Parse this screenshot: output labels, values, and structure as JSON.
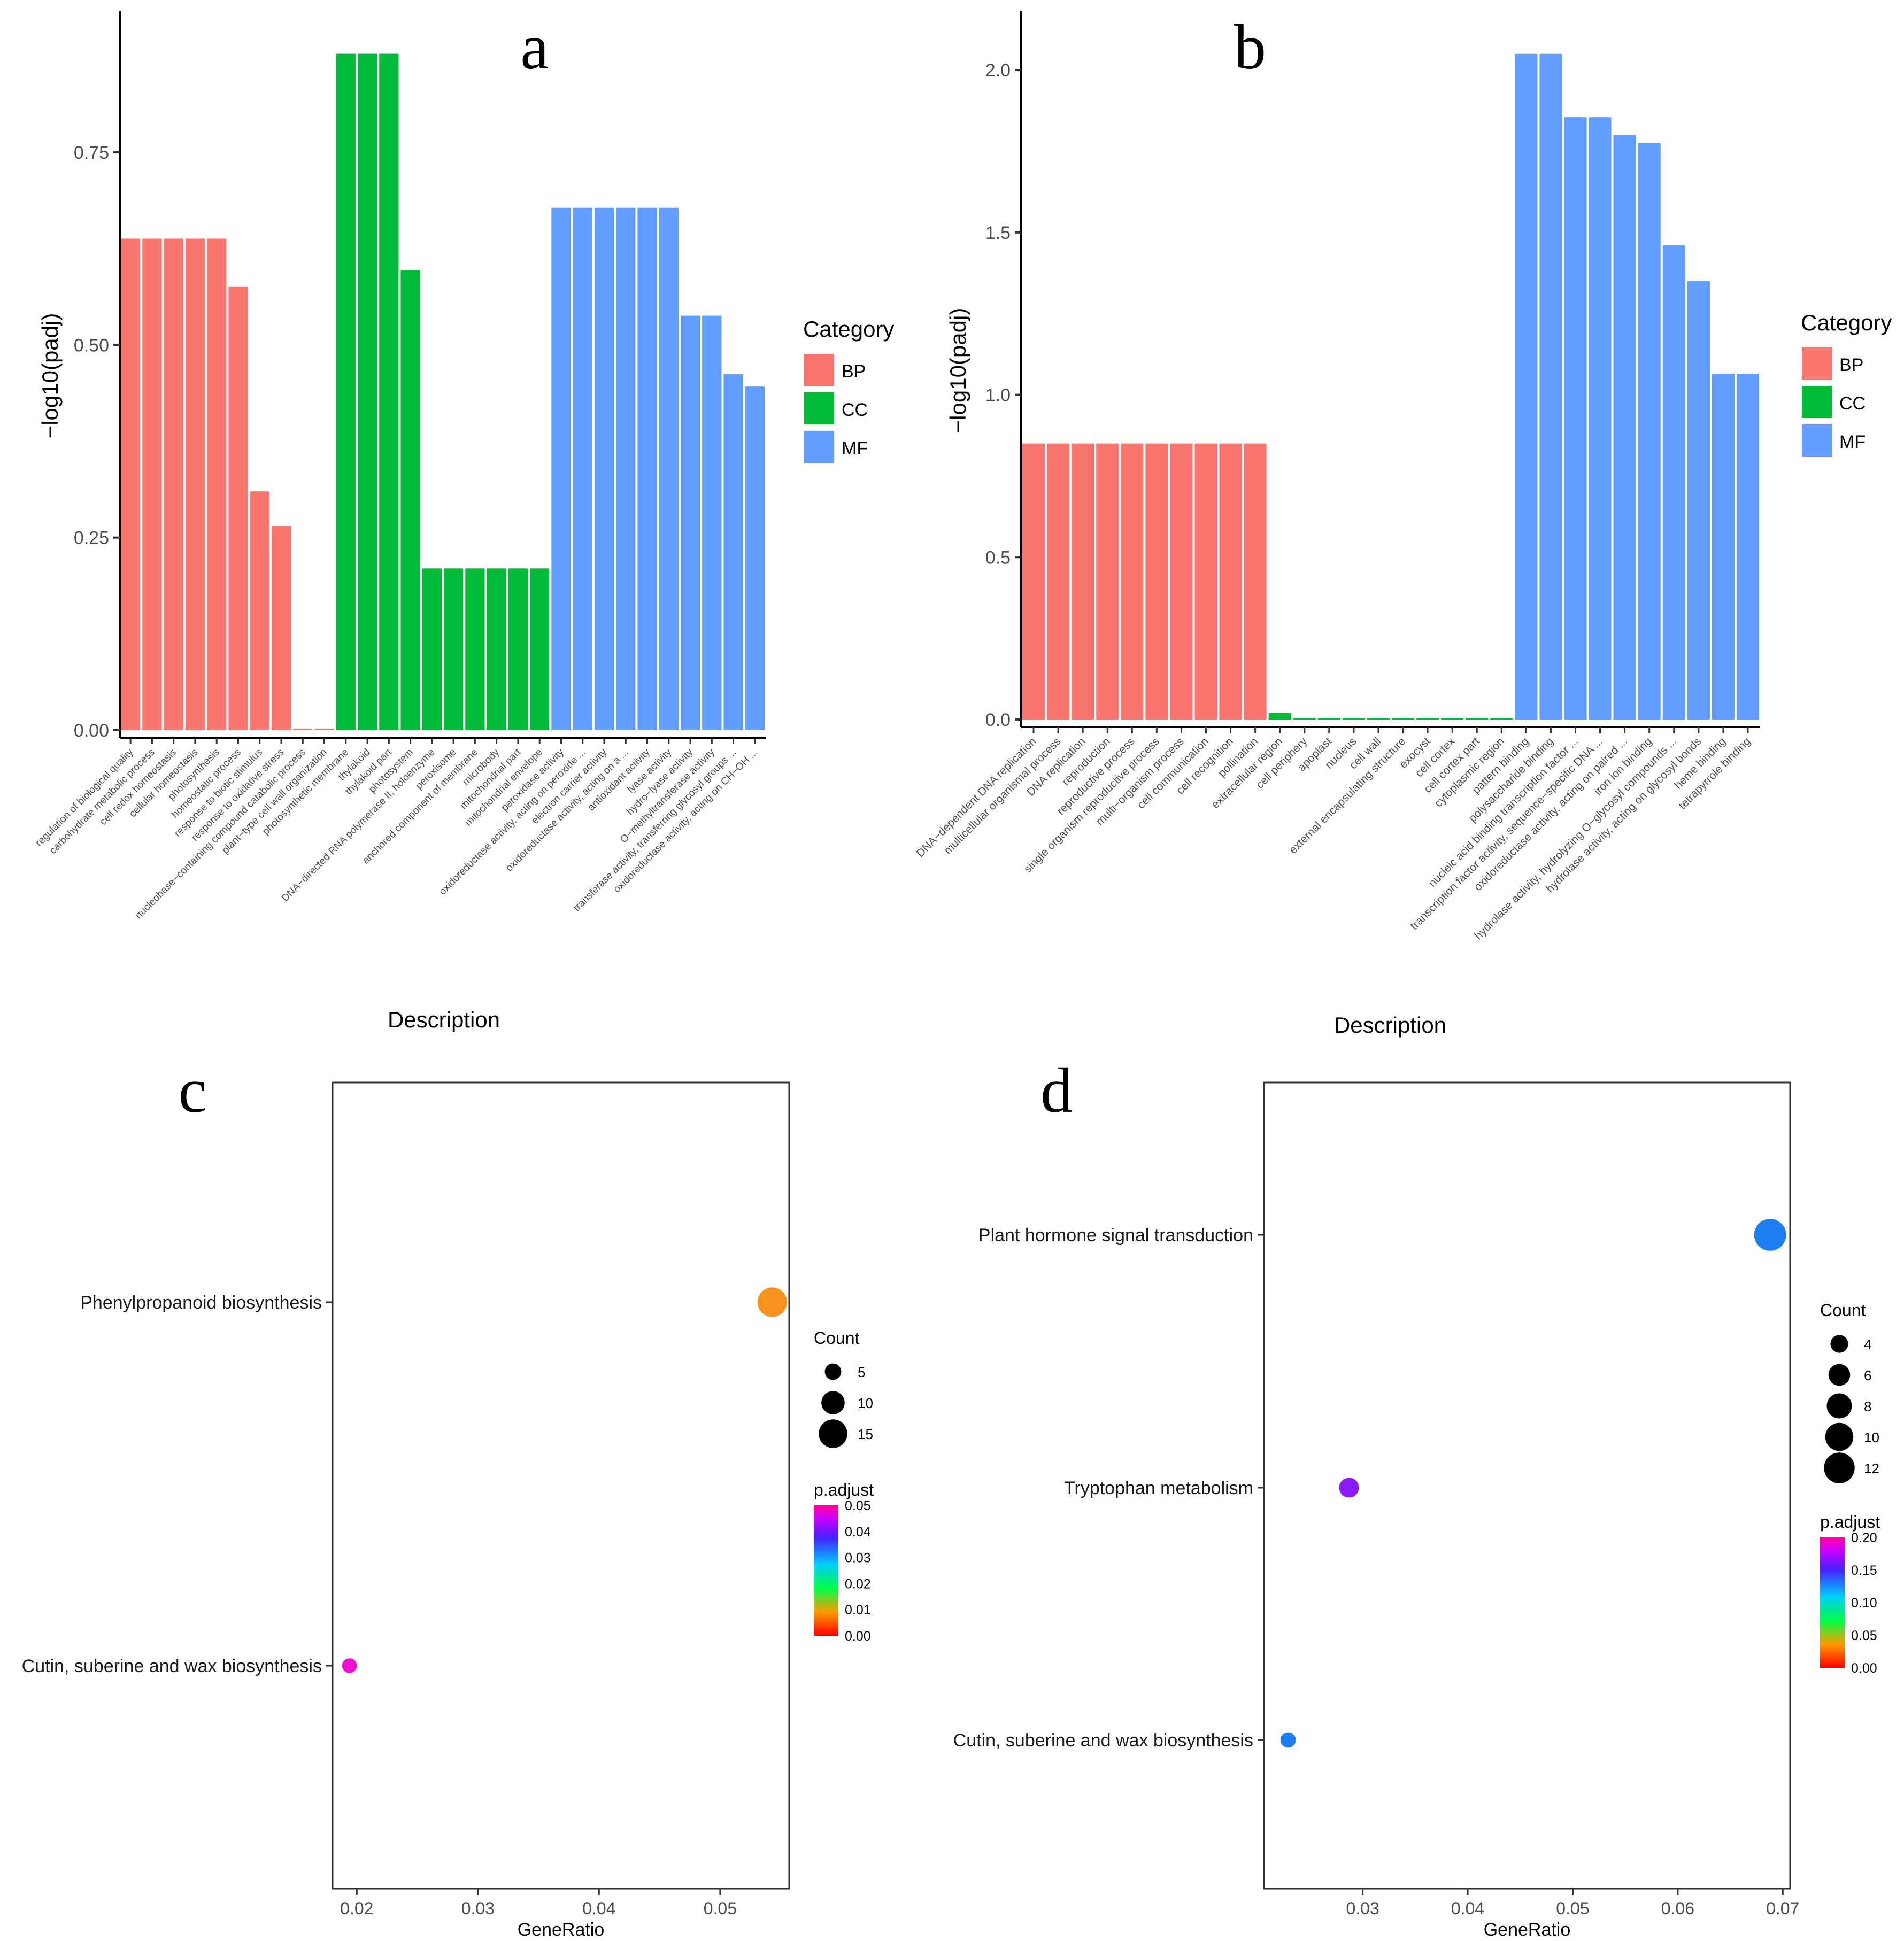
{
  "colors": {
    "BP": "#F8766D",
    "CC": "#00BA38",
    "MF": "#619CFF"
  },
  "chart_data": [
    {
      "panel": "a",
      "type": "bar",
      "xlabel": "Description",
      "ylabel": "−log10(padj)",
      "ylim": [
        0,
        0.92
      ],
      "yticks": [
        "0.00",
        "0.25",
        "0.50",
        "0.75"
      ],
      "legend_title": "Category",
      "legend": [
        "BP",
        "CC",
        "MF"
      ],
      "categories": [
        "regulation of biological quality",
        "carbohydrate metabolic process",
        "cell redox homeostasis",
        "cellular homeostasis",
        "photosynthesis",
        "homeostatic process",
        "response to biotic stimulus",
        "response to oxidative stress",
        "nucleobase−containing compound catabolic process",
        "plant−type cell wall organization",
        "photosynthetic membrane",
        "thylakoid",
        "thylakoid part",
        "photosystem",
        "DNA−directed RNA polymerase II, holoenzyme",
        "peroxisome",
        "anchored component of membrane",
        "microbody",
        "mitochondrial part",
        "mitochondrial envelope",
        "peroxidase activity",
        "oxidoreductase activity, acting on peroxide ...",
        "electron carrier activity",
        "oxidoreductase activity, acting on a ...",
        "antioxidant activity",
        "lyase activity",
        "hydro−lyase activity",
        "O−methyltransferase activity",
        "transferase activity, transferring glycosyl groups ...",
        "oxidoreductase activity, acting on CH−OH ..."
      ],
      "groups": [
        "BP",
        "BP",
        "BP",
        "BP",
        "BP",
        "BP",
        "BP",
        "BP",
        "BP",
        "BP",
        "CC",
        "CC",
        "CC",
        "CC",
        "CC",
        "CC",
        "CC",
        "CC",
        "CC",
        "CC",
        "MF",
        "MF",
        "MF",
        "MF",
        "MF",
        "MF",
        "MF",
        "MF",
        "MF",
        "MF"
      ],
      "values": [
        0.638,
        0.638,
        0.638,
        0.638,
        0.638,
        0.576,
        0.31,
        0.265,
        0.002,
        0.002,
        0.878,
        0.878,
        0.878,
        0.597,
        0.21,
        0.21,
        0.21,
        0.21,
        0.21,
        0.21,
        0.678,
        0.678,
        0.678,
        0.678,
        0.678,
        0.678,
        0.538,
        0.538,
        0.462,
        0.446
      ]
    },
    {
      "panel": "b",
      "type": "bar",
      "xlabel": "Description",
      "ylabel": "−log10(padj)",
      "ylim": [
        0,
        2.15
      ],
      "yticks": [
        "0.0",
        "0.5",
        "1.0",
        "1.5",
        "2.0"
      ],
      "legend_title": "Category",
      "legend": [
        "BP",
        "CC",
        "MF"
      ],
      "categories": [
        "DNA−dependent DNA replication",
        "multicellular organismal process",
        "DNA replication",
        "reproduction",
        "reproductive process",
        "single organism reproductive process",
        "multi−organism process",
        "cell communication",
        "cell recognition",
        "pollination",
        "extracellular region",
        "cell periphery",
        "apoplast",
        "nucleus",
        "cell wall",
        "external encapsulating structure",
        "exocyst",
        "cell cortex",
        "cell cortex part",
        "cytoplasmic region",
        "pattern binding",
        "polysaccharide binding",
        "nucleic acid binding transcription factor ...",
        "transcription factor activity, sequence−specific DNA ...",
        "oxidoreductase activity, acting on paired ...",
        "iron ion binding",
        "hydrolase activity, hydrolyzing O−glycosyl compounds ...",
        "hydrolase activity, acting on glycosyl bonds",
        "heme binding",
        "tetrapyrrole binding"
      ],
      "groups": [
        "BP",
        "BP",
        "BP",
        "BP",
        "BP",
        "BP",
        "BP",
        "BP",
        "BP",
        "BP",
        "CC",
        "CC",
        "CC",
        "CC",
        "CC",
        "CC",
        "CC",
        "CC",
        "CC",
        "CC",
        "MF",
        "MF",
        "MF",
        "MF",
        "MF",
        "MF",
        "MF",
        "MF",
        "MF",
        "MF"
      ],
      "values": [
        0.85,
        0.85,
        0.85,
        0.85,
        0.85,
        0.85,
        0.85,
        0.85,
        0.85,
        0.85,
        0.02,
        0.004,
        0.004,
        0.004,
        0.004,
        0.004,
        0.004,
        0.004,
        0.004,
        0.004,
        2.05,
        2.05,
        1.855,
        1.855,
        1.8,
        1.775,
        1.46,
        1.35,
        1.065,
        1.065
      ]
    },
    {
      "panel": "c",
      "type": "scatter",
      "xlabel": "GeneRatio",
      "xlim": [
        0.018,
        0.0557
      ],
      "xticks": [
        0.02,
        0.03,
        0.04,
        0.05
      ],
      "xtick_labels": [
        "0.02",
        "0.03",
        "0.04",
        "0.05"
      ],
      "categories": [
        "Phenylpropanoid biosynthesis",
        "Cutin, suberine and wax biosynthesis"
      ],
      "points": [
        {
          "term": "Phenylpropanoid biosynthesis",
          "x": 0.0543,
          "count": 16,
          "p_adjust": 0.0065,
          "color": "#F7931E"
        },
        {
          "term": "Cutin, suberine and wax biosynthesis",
          "x": 0.0194,
          "count": 4,
          "p_adjust": 0.0478,
          "color": "#EE12D0"
        }
      ],
      "size_legend": {
        "title": "Count",
        "labels": [
          "5",
          "10",
          "15"
        ],
        "values": [
          5,
          10,
          15
        ]
      },
      "color_legend": {
        "title": "p.adjust",
        "labels": [
          "0.05",
          "0.04",
          "0.03",
          "0.02",
          "0.01",
          "0.00"
        ]
      }
    },
    {
      "panel": "d",
      "type": "scatter",
      "xlabel": "GeneRatio",
      "xlim": [
        0.0206,
        0.0707
      ],
      "xticks": [
        0.03,
        0.04,
        0.05,
        0.06,
        0.07
      ],
      "xtick_labels": [
        "0.03",
        "0.04",
        "0.05",
        "0.06",
        "0.07"
      ],
      "categories": [
        "Plant hormone signal transduction",
        "Tryptophan metabolism",
        "Cutin, suberine and wax biosynthesis"
      ],
      "points": [
        {
          "term": "Plant hormone signal transduction",
          "x": 0.0688,
          "count": 13,
          "p_adjust": 0.1,
          "color": "#1E7FF0"
        },
        {
          "term": "Tryptophan metabolism",
          "x": 0.0287,
          "count": 5,
          "p_adjust": 0.16,
          "color": "#8A1BF2"
        },
        {
          "term": "Cutin, suberine and wax biosynthesis",
          "x": 0.0229,
          "count": 3,
          "p_adjust": 0.1,
          "color": "#1E7FF0"
        }
      ],
      "size_legend": {
        "title": "Count",
        "labels": [
          "4",
          "6",
          "8",
          "10",
          "12"
        ],
        "values": [
          4,
          6,
          8,
          10,
          12
        ]
      },
      "color_legend": {
        "title": "p.adjust",
        "labels": [
          "0.20",
          "0.15",
          "0.10",
          "0.05",
          "0.00"
        ]
      }
    }
  ],
  "panel_labels": [
    "a",
    "b",
    "c",
    "d"
  ]
}
